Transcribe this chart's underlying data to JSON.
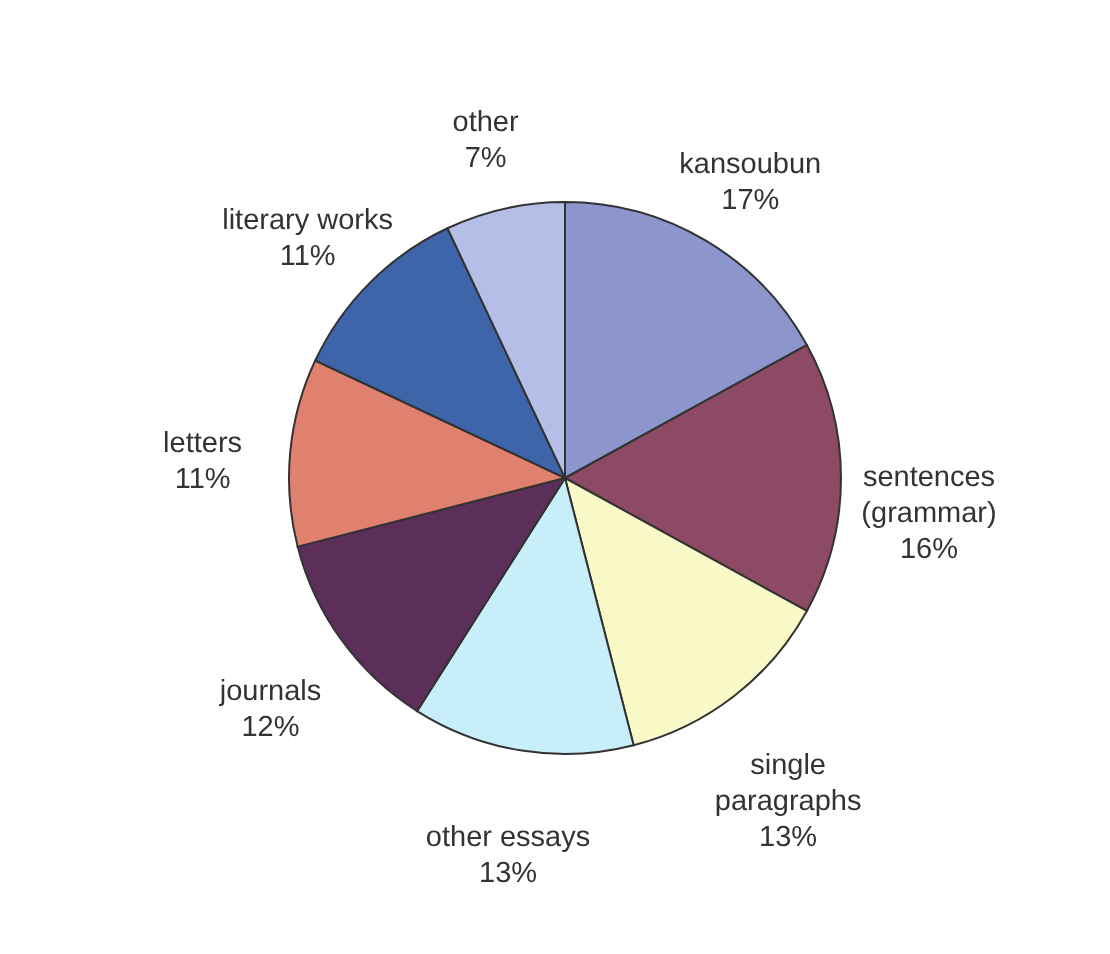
{
  "chart_data": {
    "type": "pie",
    "categories": [
      "kansoubun",
      "sentences (grammar)",
      "single paragraphs",
      "other essays",
      "journals",
      "letters",
      "literary works",
      "other"
    ],
    "values": [
      17,
      16,
      13,
      13,
      12,
      11,
      11,
      7
    ],
    "value_labels": [
      "17%",
      "16%",
      "13%",
      "13%",
      "12%",
      "11%",
      "11%",
      "7%"
    ],
    "colors": [
      "#8c96cc",
      "#8c4a64",
      "#fafac8",
      "#c8eefa",
      "#5c2e5a",
      "#e0806e",
      "#3e64aa",
      "#b4bee6"
    ]
  }
}
